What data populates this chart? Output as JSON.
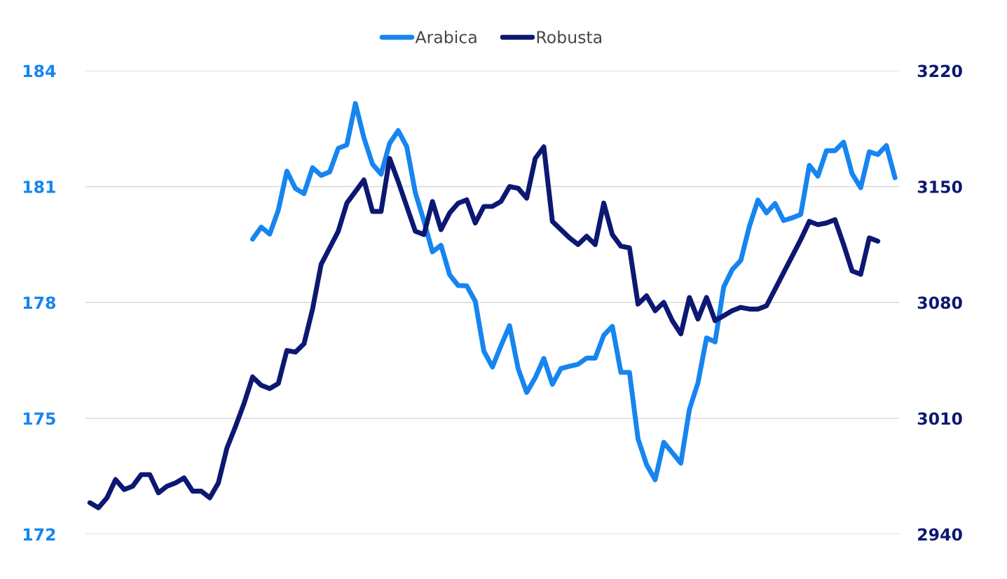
{
  "chart_data": {
    "type": "line",
    "categories": [
      null,
      null,
      null,
      null,
      null,
      null,
      null,
      null,
      null,
      null,
      null,
      null,
      null,
      null,
      null,
      null,
      null,
      null,
      null,
      null,
      null,
      null,
      null,
      null,
      null,
      null,
      null,
      null,
      null,
      null,
      null,
      null,
      null,
      null,
      null,
      null,
      null,
      null,
      null,
      null,
      null,
      null,
      null,
      null,
      null,
      null,
      null,
      null,
      null,
      null,
      null,
      null,
      null,
      null,
      null,
      null,
      null,
      null,
      null,
      null,
      null,
      null,
      null,
      null,
      null,
      null,
      null,
      null,
      null,
      null,
      null,
      null,
      null,
      null,
      null,
      null,
      null,
      null,
      null,
      null,
      null,
      null,
      null,
      null,
      null,
      null,
      null,
      null,
      null,
      null,
      null,
      null,
      null,
      null,
      null
    ],
    "series": [
      {
        "name": "Arabica",
        "color": "#1685f0",
        "axis": "y",
        "values": [
          null,
          null,
          null,
          null,
          null,
          null,
          null,
          null,
          null,
          null,
          null,
          null,
          null,
          null,
          null,
          null,
          null,
          null,
          null,
          179.64,
          179.95,
          179.77,
          180.39,
          181.4,
          180.95,
          180.82,
          181.49,
          181.29,
          181.38,
          181.99,
          182.08,
          183.15,
          182.26,
          181.58,
          181.32,
          182.12,
          182.45,
          182.03,
          180.84,
          180.11,
          179.31,
          179.48,
          178.72,
          178.44,
          178.43,
          178.03,
          176.74,
          176.33,
          176.88,
          177.4,
          176.29,
          175.67,
          176.05,
          176.55,
          175.88,
          176.29,
          176.35,
          176.4,
          176.56,
          176.56,
          177.15,
          177.38,
          176.19,
          176.19,
          174.47,
          173.8,
          173.41,
          174.38,
          174.11,
          173.84,
          175.23,
          175.92,
          177.08,
          176.98,
          178.4,
          178.85,
          179.09,
          179.97,
          180.65,
          180.32,
          180.56,
          180.12,
          180.19,
          180.28,
          181.55,
          181.27,
          181.93,
          181.93,
          182.15,
          181.33,
          180.97,
          181.9,
          181.83,
          182.06,
          181.23
        ]
      },
      {
        "name": "Robusta",
        "color": "#0c1872",
        "axis": "y2",
        "values": [
          2959,
          2956,
          2962,
          2973,
          2967,
          2969,
          2976,
          2976,
          2965,
          2969,
          2971,
          2974,
          2966,
          2966,
          2962,
          2971,
          2992,
          3005,
          3019,
          3035,
          3030,
          3028,
          3031,
          3051,
          3050,
          3055,
          3076,
          3103,
          3113,
          3123,
          3140,
          3147,
          3154,
          3135,
          3135,
          3167,
          3153,
          3138,
          3123,
          3121,
          3141,
          3124,
          3134,
          3140,
          3142,
          3128,
          3138,
          3138,
          3141,
          3150,
          3149,
          3143,
          3167,
          3174,
          3129,
          3124,
          3119,
          3115,
          3120,
          3115,
          3140,
          3121,
          3114,
          3113,
          3079,
          3084,
          3075,
          3080,
          3069,
          3061,
          3083,
          3070,
          3083,
          3069,
          3072,
          3075,
          3077,
          3076,
          3076,
          3078,
          3088,
          3098,
          3108,
          3118,
          3129,
          3127,
          3128,
          3130,
          3115,
          3099,
          3097,
          3119,
          3117,
          null,
          null
        ]
      }
    ],
    "ylim": [
      172,
      184
    ],
    "yticks": [
      172,
      175,
      178,
      181,
      184
    ],
    "y2lim": [
      2940,
      3220
    ],
    "y2ticks": [
      2940,
      3010,
      3080,
      3150,
      3220
    ],
    "grid": "y",
    "legend": "top",
    "line_style": "solid",
    "tick_labels": "y"
  }
}
